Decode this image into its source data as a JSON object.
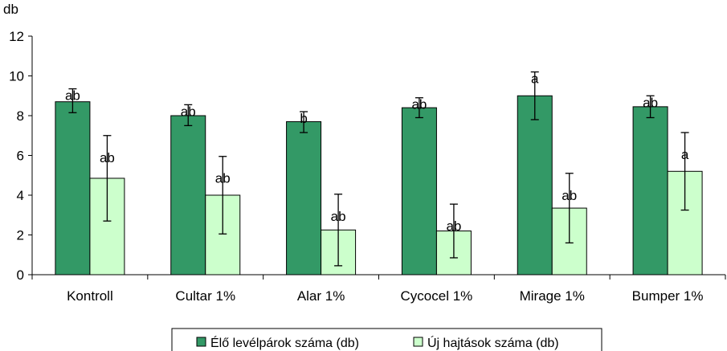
{
  "chart_data": {
    "type": "bar",
    "ylabel": "db",
    "ylim": [
      0,
      12
    ],
    "yticks": [
      0,
      2,
      4,
      6,
      8,
      10,
      12
    ],
    "grid": false,
    "legend_position": "bottom",
    "categories": [
      "Kontroll",
      "Cultar 1%",
      "Alar 1%",
      "Cycocel 1%",
      "Mirage 1%",
      "Bumper 1%"
    ],
    "series": [
      {
        "name": "Élő levélpárok száma (db)",
        "color": "#339966",
        "values": [
          8.7,
          8.0,
          7.7,
          8.4,
          9.0,
          8.45
        ],
        "error_low": [
          8.15,
          7.5,
          7.15,
          7.9,
          7.8,
          7.9
        ],
        "error_high": [
          9.35,
          8.55,
          8.2,
          8.9,
          10.2,
          9.0
        ],
        "significance": [
          "ab",
          "ab",
          "b",
          "ab",
          "a",
          "ab"
        ]
      },
      {
        "name": "Új hajtások száma (db)",
        "color": "#ccffcc",
        "values": [
          4.85,
          4.0,
          2.25,
          2.2,
          3.35,
          5.2
        ],
        "error_low": [
          2.7,
          2.05,
          0.45,
          0.85,
          1.6,
          3.25
        ],
        "error_high": [
          7.0,
          5.95,
          4.05,
          3.55,
          5.1,
          7.15
        ],
        "significance": [
          "ab",
          "ab",
          "ab",
          "ab",
          "ab",
          "a"
        ]
      }
    ]
  }
}
